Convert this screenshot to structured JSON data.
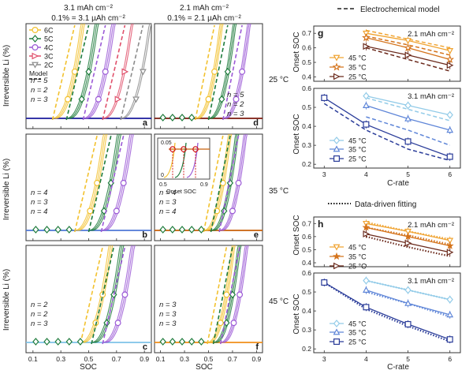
{
  "figure": {
    "left_header": {
      "line1": "3.1 mAh cm⁻²",
      "line2": "0.1% = 3.1 µAh cm⁻²"
    },
    "middle_header": {
      "line1": "2.1 mAh cm⁻²",
      "line2": "0.1% = 2.1 µAh cm⁻²"
    },
    "row_temperatures": [
      "25 °C",
      "35 °C",
      "45 °C"
    ],
    "left_ylabel": "Irreversible Li (%)",
    "left_xlabel": "SOC",
    "model_legend_label": "Model",
    "top_right_legend": "Electrochemical model",
    "bottom_right_legend": "Data-driven fitting",
    "right_ylabel": "Onset SOC",
    "right_xlabel": "C-rate",
    "colors": {
      "6C": "#f2c12e",
      "5C": "#1e7b3c",
      "4C": "#9b59d6",
      "3C": "#e0506b",
      "2C": "#8c8c8c",
      "45C_21": "#f0a330",
      "35C_21": "#d4731b",
      "25C_21": "#6b2a1c",
      "45C_31": "#92cbe8",
      "35C_31": "#5f86d8",
      "25C_31": "#2a3c99",
      "thr_25": "#1a1a9c",
      "thr_35": "#4f78d6",
      "thr_45": "#7ec3e8",
      "thr_r25": "#7b1a0e",
      "thr_r35": "#c8610a",
      "thr_r45": "#f08e1a"
    }
  },
  "chart_data": [
    {
      "panel": "a",
      "type": "line",
      "temperature": "25 °C",
      "capacity": "3.1 mAh cm⁻²",
      "xlabel": "",
      "ylabel": "Irreversible Li (%)",
      "xlim": [
        0.05,
        0.95
      ],
      "series_legend": [
        "6C",
        "5C",
        "4C",
        "3C",
        "2C"
      ],
      "series": [
        {
          "name": "6C",
          "onset_soc": 0.3
        },
        {
          "name": "5C",
          "onset_soc": 0.4
        },
        {
          "name": "4C",
          "onset_soc": 0.52
        },
        {
          "name": "3C",
          "onset_soc": 0.66
        },
        {
          "name": "2C",
          "onset_soc": 0.79
        }
      ],
      "n_labels": [
        "n = 5",
        "n = 2",
        "n = 3"
      ]
    },
    {
      "panel": "b",
      "type": "line",
      "temperature": "35 °C",
      "capacity": "3.1 mAh cm⁻²",
      "ylabel": "Irreversible Li (%)",
      "xlim": [
        0.05,
        0.95
      ],
      "series": [
        {
          "name": "6C",
          "onset_soc": 0.46
        },
        {
          "name": "5C",
          "onset_soc": 0.56
        },
        {
          "name": "4C",
          "onset_soc": 0.65
        }
      ],
      "n_labels": [
        "n = 4",
        "n = 3",
        "n = 4"
      ]
    },
    {
      "panel": "c",
      "type": "line",
      "temperature": "45 °C",
      "capacity": "3.1 mAh cm⁻²",
      "ylabel": "Irreversible Li (%)",
      "xlabel": "SOC",
      "xlim": [
        0.05,
        0.95
      ],
      "xticks": [
        "0.1",
        "0.3",
        "0.5",
        "0.7",
        "0.9"
      ],
      "series": [
        {
          "name": "6C",
          "onset_soc": 0.5
        },
        {
          "name": "5C",
          "onset_soc": 0.58
        },
        {
          "name": "4C",
          "onset_soc": 0.66
        }
      ],
      "n_labels": [
        "n = 2",
        "n = 2",
        "n = 3"
      ]
    },
    {
      "panel": "d",
      "type": "line",
      "temperature": "25 °C",
      "capacity": "2.1 mAh cm⁻²",
      "xlim": [
        0.05,
        0.95
      ],
      "series": [
        {
          "name": "6C",
          "onset_soc": 0.45
        },
        {
          "name": "5C",
          "onset_soc": 0.56
        },
        {
          "name": "4C",
          "onset_soc": 0.68
        }
      ],
      "n_labels": [
        "n = 5",
        "n = 2",
        "n = 3"
      ]
    },
    {
      "panel": "e",
      "type": "line",
      "temperature": "35 °C",
      "capacity": "2.1 mAh cm⁻²",
      "xlim": [
        0.05,
        0.95
      ],
      "series": [
        {
          "name": "6C",
          "onset_soc": 0.52
        },
        {
          "name": "5C",
          "onset_soc": 0.58
        },
        {
          "name": "4C",
          "onset_soc": 0.65
        }
      ],
      "n_labels": [
        "n = 4",
        "n = 3",
        "n = 4"
      ],
      "inset": {
        "yticks": [
          "0.05",
          "0"
        ],
        "xticks": [
          "0.5",
          "0.9"
        ],
        "label": "Onset SOC"
      }
    },
    {
      "panel": "f",
      "type": "line",
      "temperature": "45 °C",
      "capacity": "2.1 mAh cm⁻²",
      "xlabel": "SOC",
      "xlim": [
        0.05,
        0.95
      ],
      "xticks": [
        "0.1",
        "0.3",
        "0.5",
        "0.7",
        "0.9"
      ],
      "series": [
        {
          "name": "6C",
          "onset_soc": 0.55
        },
        {
          "name": "5C",
          "onset_soc": 0.6
        },
        {
          "name": "4C",
          "onset_soc": 0.66
        }
      ],
      "n_labels": [
        "n = 3",
        "n = 3",
        "n = 3"
      ]
    },
    {
      "panel": "g",
      "type": "line",
      "capacity": "2.1 mAh cm⁻²",
      "ylabel": "Onset SOC",
      "xlim": [
        2.75,
        6.25
      ],
      "ylim": [
        0.37,
        0.75
      ],
      "yticks": [
        "0.4",
        "0.5",
        "0.6",
        "0.7"
      ],
      "x": [
        4,
        5,
        6
      ],
      "series": [
        {
          "name": "45 °C",
          "values": [
            0.7,
            0.65,
            0.58
          ],
          "model": [
            0.72,
            0.66,
            0.6
          ]
        },
        {
          "name": "35 °C",
          "values": [
            0.67,
            0.6,
            0.52
          ],
          "model": [
            0.68,
            0.62,
            0.55
          ]
        },
        {
          "name": "25 °C",
          "values": [
            0.61,
            0.55,
            0.48
          ],
          "model": [
            0.6,
            0.52,
            0.44
          ]
        }
      ]
    },
    {
      "panel": "g",
      "type": "line",
      "capacity": "3.1 mAh cm⁻²",
      "ylabel": "Onset SOC",
      "xlabel": "C-rate",
      "xlim": [
        2.75,
        6.25
      ],
      "ylim": [
        0.18,
        0.6
      ],
      "yticks": [
        "0.2",
        "0.3",
        "0.4",
        "0.5",
        "0.6"
      ],
      "xticks": [
        "3",
        "4",
        "5",
        "6"
      ],
      "x": [
        3,
        4,
        5,
        6
      ],
      "series": [
        {
          "name": "45 °C",
          "values": [
            null,
            0.56,
            0.51,
            0.46
          ],
          "model": [
            null,
            0.55,
            0.49,
            0.43
          ]
        },
        {
          "name": "35 °C",
          "values": [
            null,
            0.51,
            0.44,
            0.38
          ],
          "model": [
            null,
            0.45,
            0.38,
            0.3
          ]
        },
        {
          "name": "25 °C",
          "values": [
            0.55,
            0.41,
            0.32,
            0.24
          ],
          "model": [
            0.52,
            0.38,
            0.28,
            0.22
          ]
        }
      ]
    },
    {
      "panel": "h",
      "type": "line",
      "capacity": "2.1 mAh cm⁻²",
      "ylabel": "Onset SOC",
      "xlim": [
        2.75,
        6.25
      ],
      "ylim": [
        0.37,
        0.75
      ],
      "yticks": [
        "0.4",
        "0.5",
        "0.6",
        "0.7"
      ],
      "x": [
        4,
        5,
        6
      ],
      "series": [
        {
          "name": "45 °C",
          "values": [
            0.7,
            0.64,
            0.57
          ],
          "fit": [
            0.71,
            0.64,
            0.58
          ]
        },
        {
          "name": "35 °C",
          "values": [
            0.67,
            0.6,
            0.53
          ],
          "fit": [
            0.67,
            0.61,
            0.54
          ]
        },
        {
          "name": "25 °C",
          "values": [
            0.62,
            0.55,
            0.48
          ],
          "fit": [
            0.6,
            0.52,
            0.45
          ]
        }
      ]
    },
    {
      "panel": "h",
      "type": "line",
      "capacity": "3.1 mAh cm⁻²",
      "ylabel": "Onset SOC",
      "xlabel": "C-rate",
      "xlim": [
        2.75,
        6.25
      ],
      "ylim": [
        0.18,
        0.6
      ],
      "yticks": [
        "0.2",
        "0.3",
        "0.4",
        "0.5",
        "0.6"
      ],
      "xticks": [
        "3",
        "4",
        "5",
        "6"
      ],
      "x": [
        3,
        4,
        5,
        6
      ],
      "series": [
        {
          "name": "45 °C",
          "values": [
            null,
            0.56,
            0.51,
            0.46
          ],
          "fit": [
            null,
            0.56,
            0.51,
            0.46
          ]
        },
        {
          "name": "35 °C",
          "values": [
            null,
            0.51,
            0.44,
            0.38
          ],
          "fit": [
            null,
            0.5,
            0.44,
            0.37
          ]
        },
        {
          "name": "25 °C",
          "values": [
            0.55,
            0.42,
            0.33,
            0.25
          ],
          "fit": [
            0.55,
            0.41,
            0.32,
            0.24
          ]
        }
      ]
    }
  ]
}
